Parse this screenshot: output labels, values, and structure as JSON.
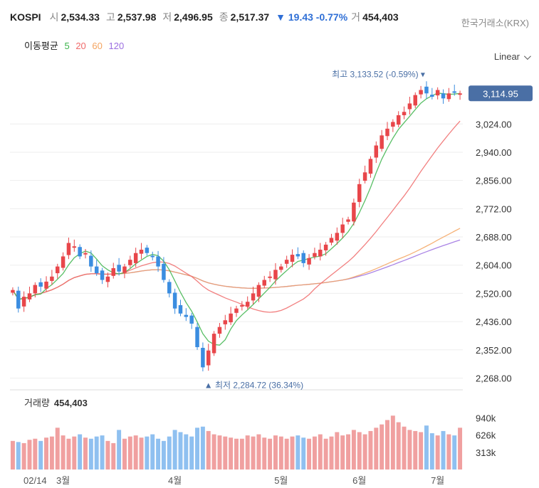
{
  "header": {
    "symbol": "KOSPI",
    "open_label": "시",
    "open": "2,534.33",
    "high_label": "고",
    "high": "2,537.98",
    "low_label": "저",
    "low": "2,496.95",
    "close_label": "종",
    "close": "2,517.37",
    "change": "▼ 19.43 -0.77%",
    "volume_label": "거",
    "volume": "454,403",
    "exchange": "한국거래소(KRX)"
  },
  "ma_legend": {
    "title": "이동평균",
    "items": [
      {
        "label": "5",
        "color": "#3cb44b"
      },
      {
        "label": "20",
        "color": "#f06a6a"
      },
      {
        "label": "60",
        "color": "#f4a460"
      },
      {
        "label": "120",
        "color": "#9b6ee0"
      }
    ]
  },
  "scale_button": "Linear",
  "colors": {
    "up": "#e8464a",
    "down": "#3b8de0",
    "vol_up": "#f0a0a0",
    "vol_down": "#8fc0f0",
    "grid": "#eeeeee",
    "price_tag": "#4a6fa5"
  },
  "chart_data": {
    "type": "candlestick",
    "title": "KOSPI",
    "ylim": [
      2250,
      3160
    ],
    "yticks": [
      "3,024.00",
      "2,940.00",
      "2,856.00",
      "2,772.00",
      "2,688.00",
      "2,604.00",
      "2,520.00",
      "2,436.00",
      "2,352.00",
      "2,268.00"
    ],
    "ytick_values": [
      3024,
      2940,
      2856,
      2772,
      2688,
      2604,
      2520,
      2436,
      2352,
      2268
    ],
    "xlabels": [
      {
        "label": "02/14",
        "index": 4
      },
      {
        "label": "3월",
        "index": 9
      },
      {
        "label": "4월",
        "index": 29
      },
      {
        "label": "5월",
        "index": 48
      },
      {
        "label": "6월",
        "index": 62
      },
      {
        "label": "7월",
        "index": 76
      }
    ],
    "last_price": "3,114.95",
    "last_value": 3114.95,
    "high_annotation": "최고 3,133.52 (-0.59%)",
    "high_annotation_value": 3133.52,
    "high_index": 74,
    "low_annotation": "최저 2,284.72 (36.34%)",
    "low_annotation_value": 2284.72,
    "low_index": 35,
    "close": [
      2530,
      2475,
      2510,
      2520,
      2545,
      2540,
      2555,
      2570,
      2600,
      2630,
      2670,
      2660,
      2630,
      2640,
      2600,
      2580,
      2560,
      2570,
      2595,
      2585,
      2600,
      2620,
      2640,
      2650,
      2640,
      2630,
      2600,
      2560,
      2520,
      2475,
      2460,
      2450,
      2430,
      2360,
      2300,
      2350,
      2400,
      2420,
      2440,
      2460,
      2475,
      2485,
      2495,
      2520,
      2545,
      2560,
      2570,
      2590,
      2600,
      2620,
      2635,
      2630,
      2610,
      2625,
      2640,
      2650,
      2665,
      2685,
      2700,
      2725,
      2740,
      2790,
      2845,
      2880,
      2920,
      2960,
      2990,
      3010,
      3030,
      3050,
      3060,
      3085,
      3110,
      3125,
      3115,
      3105,
      3125,
      3100,
      3115,
      3120,
      3115
    ],
    "volume": [
      520,
      500,
      480,
      540,
      560,
      520,
      580,
      600,
      760,
      620,
      560,
      600,
      640,
      580,
      560,
      600,
      620,
      520,
      480,
      720,
      560,
      600,
      620,
      580,
      600,
      640,
      560,
      520,
      600,
      720,
      680,
      640,
      600,
      760,
      780,
      700,
      640,
      620,
      600,
      580,
      560,
      560,
      620,
      600,
      640,
      580,
      560,
      620,
      600,
      560,
      600,
      620,
      580,
      560,
      600,
      640,
      560,
      600,
      680,
      620,
      640,
      720,
      680,
      640,
      700,
      760,
      820,
      900,
      980,
      860,
      780,
      720,
      700,
      680,
      800,
      660,
      620,
      700,
      640,
      620,
      760
    ],
    "volume_ticks": [
      "940k",
      "626k",
      "313k"
    ],
    "volume_title": "거래량",
    "volume_value": "454,403"
  }
}
